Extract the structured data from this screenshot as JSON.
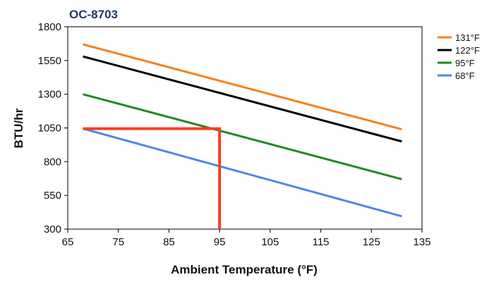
{
  "chart_data": {
    "type": "line",
    "title": "OC-8703",
    "xlabel": "Ambient Temperature (°F)",
    "ylabel": "BTU/hr",
    "xlim": [
      65,
      135
    ],
    "ylim": [
      300,
      1800
    ],
    "xticks": [
      65,
      75,
      85,
      95,
      105,
      115,
      125,
      135
    ],
    "yticks": [
      300,
      550,
      800,
      1050,
      1300,
      1550,
      1800
    ],
    "xtick_labels": [
      "65",
      "75",
      "85",
      "95",
      "105",
      "115",
      "125",
      "135"
    ],
    "ytick_labels": [
      "300",
      "550",
      "800",
      "1050",
      "1300",
      "1550",
      "1800"
    ],
    "grid": false,
    "legend_position": "right",
    "series": [
      {
        "name": "131°F",
        "color": "#f5821f",
        "x": [
          68,
          131
        ],
        "y": [
          1670,
          1040
        ]
      },
      {
        "name": "122°F",
        "color": "#000000",
        "x": [
          68,
          131
        ],
        "y": [
          1580,
          950
        ]
      },
      {
        "name": "95°F",
        "color": "#1f8a1f",
        "x": [
          68,
          131
        ],
        "y": [
          1300,
          670
        ]
      },
      {
        "name": "68°F",
        "color": "#4f86e6",
        "x": [
          68,
          131
        ],
        "y": [
          1045,
          395
        ]
      }
    ],
    "annotation": {
      "color": "#ff3b1f",
      "points": [
        [
          68,
          1045
        ],
        [
          95,
          1045
        ],
        [
          95,
          300
        ]
      ]
    }
  }
}
